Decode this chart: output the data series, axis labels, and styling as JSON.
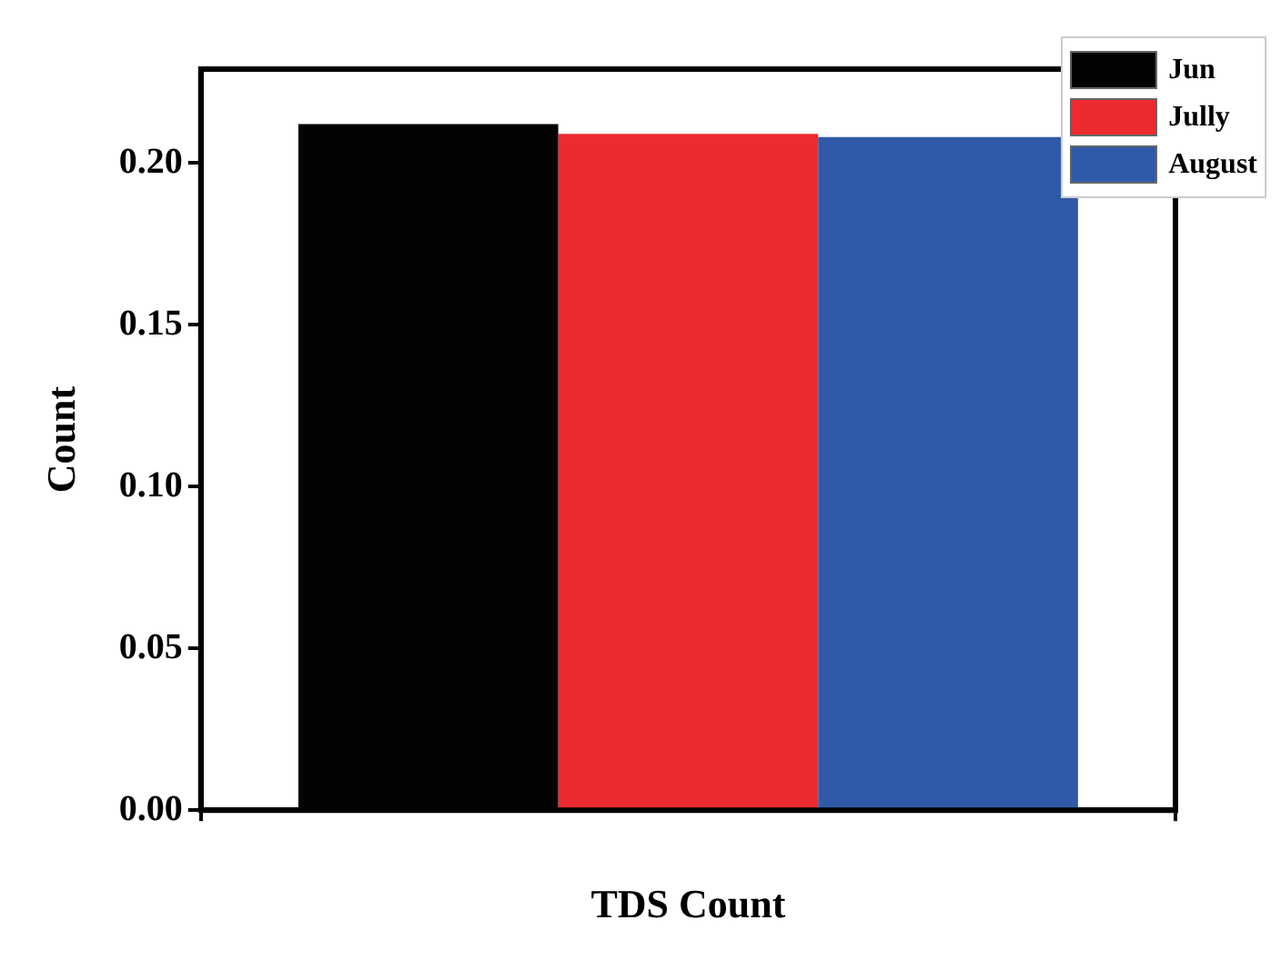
{
  "chart_data": {
    "type": "bar",
    "xlabel": "TDS Count",
    "ylabel": "Count",
    "categories": [
      null
    ],
    "series": [
      {
        "name": "Jun",
        "color": "#030303",
        "values": [
          0.212
        ]
      },
      {
        "name": "Jully",
        "color": "#ec2b30",
        "values": [
          0.209
        ]
      },
      {
        "name": "August",
        "color": "#2f5aa8",
        "values": [
          0.208
        ]
      }
    ],
    "ylim": [
      0,
      0.229
    ],
    "yticks": [
      {
        "value": 0,
        "label": "0.00"
      },
      {
        "value": 0.05,
        "label": "0.05"
      },
      {
        "value": 0.1,
        "label": "0.10"
      },
      {
        "value": 0.15,
        "label": "0.15"
      },
      {
        "value": 0.2,
        "label": "0.20"
      }
    ],
    "grid": false,
    "legend": "top right"
  }
}
